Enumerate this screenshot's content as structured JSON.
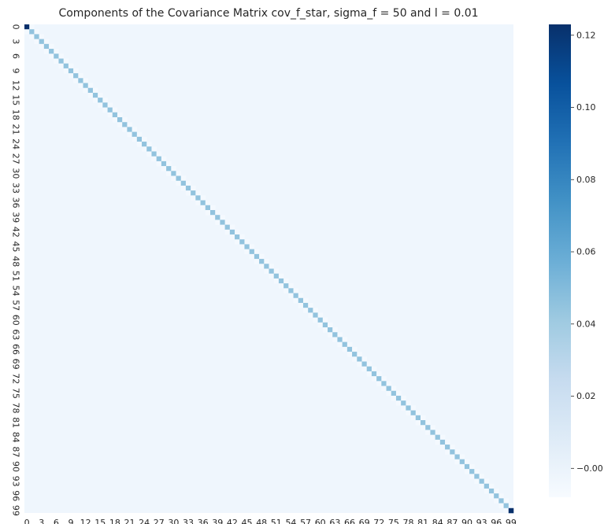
{
  "chart_data": {
    "type": "heatmap",
    "title": "Components of the Covariance Matrix cov_f_star, sigma_f = 50 and l = 0.01",
    "xlabel": "",
    "ylabel": "",
    "size": 100,
    "tick_step": 3,
    "x_tick_labels": [
      "0",
      "3",
      "6",
      "9",
      "12",
      "15",
      "18",
      "21",
      "24",
      "27",
      "30",
      "33",
      "36",
      "39",
      "42",
      "45",
      "48",
      "51",
      "54",
      "57",
      "60",
      "63",
      "66",
      "69",
      "72",
      "75",
      "78",
      "81",
      "84",
      "87",
      "90",
      "93",
      "96",
      "99"
    ],
    "y_tick_labels": [
      "0",
      "3",
      "6",
      "9",
      "12",
      "15",
      "18",
      "21",
      "24",
      "27",
      "30",
      "33",
      "36",
      "39",
      "42",
      "45",
      "48",
      "51",
      "54",
      "57",
      "60",
      "63",
      "66",
      "69",
      "72",
      "75",
      "78",
      "81",
      "84",
      "87",
      "90",
      "93",
      "96",
      "99"
    ],
    "colormap": "Blues",
    "vmin": -0.008,
    "vmax": 0.123,
    "colorbar_ticks": [
      0.12,
      0.1,
      0.08,
      0.06,
      0.04,
      0.02,
      0.0
    ],
    "colorbar_tick_labels": [
      "0.12",
      "0.10",
      "0.08",
      "0.06",
      "0.04",
      "0.02",
      "−0.00"
    ],
    "diagonal_value": 0.045,
    "near_diagonal_value": -0.006,
    "off_diagonal_value": -0.003,
    "corner_values": [
      {
        "row": 0,
        "col": 0,
        "value": 0.123
      },
      {
        "row": 99,
        "col": 99,
        "value": 0.123
      }
    ]
  }
}
